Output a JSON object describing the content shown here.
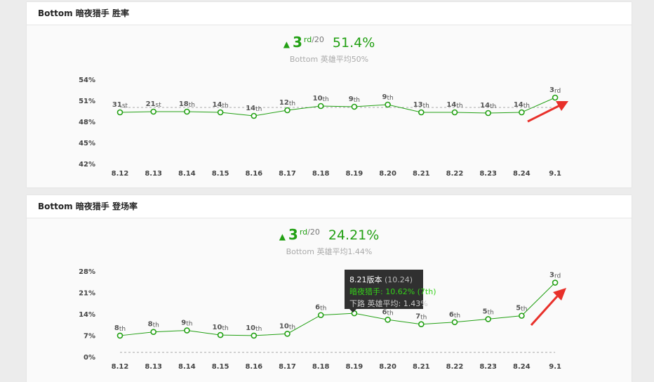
{
  "panels": [
    {
      "title": "Bottom 暗夜猎手 胜率",
      "stats": {
        "rank": "3",
        "suffix": "rd",
        "total": "/20",
        "value": "51.4%"
      },
      "avg": "Bottom 英雄平均50%"
    },
    {
      "title": "Bottom 暗夜猎手 登场率",
      "stats": {
        "rank": "3",
        "suffix": "rd",
        "total": "/20",
        "value": "24.21%"
      },
      "avg": "Bottom 英雄平均1.44%"
    }
  ],
  "tooltip": {
    "title": "8.21版本",
    "title_paren": "(10.24)",
    "hero_line": "暗夜猎手: 10.62% (7th)",
    "avg_line": "下路 英雄平均: 1.43%"
  },
  "colors": {
    "accent": "#22a013",
    "arrow": "#e8302a"
  },
  "icons": {
    "up": "triangle-up-icon",
    "callout": "red-arrow-icon"
  },
  "chart_data": [
    {
      "type": "line",
      "categories": [
        "8.12",
        "8.13",
        "8.14",
        "8.15",
        "8.16",
        "8.17",
        "8.18",
        "8.19",
        "8.20",
        "8.21",
        "8.22",
        "8.23",
        "8.24",
        "9.1"
      ],
      "yticks": [
        "54%",
        "51%",
        "48%",
        "45%",
        "42%"
      ],
      "ylim": [
        42,
        54
      ],
      "reference_line": 50,
      "series": [
        {
          "values": [
            49.3,
            49.4,
            49.4,
            49.3,
            48.8,
            49.6,
            50.2,
            50.1,
            50.4,
            49.3,
            49.3,
            49.2,
            49.3,
            51.4
          ],
          "labels": [
            [
              "31",
              "st"
            ],
            [
              "21",
              "st"
            ],
            [
              "18",
              "th"
            ],
            [
              "14",
              "th"
            ],
            [
              "14",
              "th"
            ],
            [
              "12",
              "th"
            ],
            [
              "10",
              "th"
            ],
            [
              "9",
              "th"
            ],
            [
              "9",
              "th"
            ],
            [
              "13",
              "th"
            ],
            [
              "14",
              "th"
            ],
            [
              "14",
              "th"
            ],
            [
              "14",
              "th"
            ],
            [
              "3",
              "rd"
            ]
          ]
        }
      ]
    },
    {
      "type": "line",
      "categories": [
        "8.12",
        "8.13",
        "8.14",
        "8.15",
        "8.16",
        "8.17",
        "8.18",
        "8.19",
        "8.20",
        "8.21",
        "8.22",
        "8.23",
        "8.24",
        "9.1"
      ],
      "yticks": [
        "28%",
        "21%",
        "14%",
        "7%",
        "0%"
      ],
      "ylim": [
        0,
        28
      ],
      "reference_line": 1.44,
      "series": [
        {
          "values": [
            6.9,
            8.1,
            8.6,
            7.1,
            6.9,
            7.5,
            13.6,
            14.2,
            12.1,
            10.62,
            11.3,
            12.3,
            13.4,
            24.21
          ],
          "labels": [
            [
              "8",
              "th"
            ],
            [
              "8",
              "th"
            ],
            [
              "9",
              "th"
            ],
            [
              "10",
              "th"
            ],
            [
              "10",
              "th"
            ],
            [
              "10",
              "th"
            ],
            [
              "6",
              "th"
            ],
            [
              "",
              ""
            ],
            [
              "6",
              "th"
            ],
            [
              "7",
              "th"
            ],
            [
              "6",
              "th"
            ],
            [
              "5",
              "th"
            ],
            [
              "5",
              "th"
            ],
            [
              "3",
              "rd"
            ]
          ]
        }
      ]
    }
  ]
}
